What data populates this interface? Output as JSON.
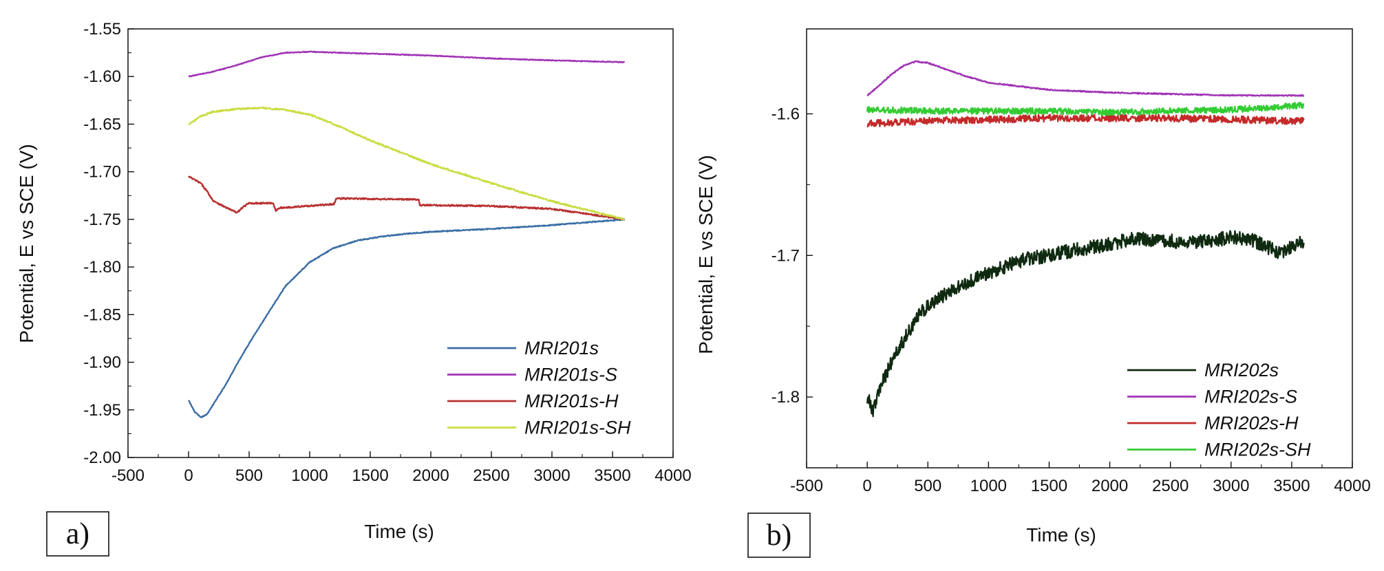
{
  "chart_data": [
    {
      "type": "line",
      "panel_label": "a)",
      "xlabel": "Time (s)",
      "ylabel": "Potential, E vs SCE (V)",
      "xlim": [
        -500,
        4000
      ],
      "ylim": [
        -2.0,
        -1.55
      ],
      "xticks": [
        -500,
        0,
        500,
        1000,
        1500,
        2000,
        2500,
        3000,
        3500,
        4000
      ],
      "xtick_labels": [
        "-500",
        "0",
        "500",
        "1000",
        "1500",
        "2000",
        "2500",
        "3000",
        "3500",
        "4000"
      ],
      "yticks": [
        -2.0,
        -1.95,
        -1.9,
        -1.85,
        -1.8,
        -1.75,
        -1.7,
        -1.65,
        -1.6,
        -1.55
      ],
      "ytick_labels": [
        "-2.00",
        "-1.95",
        "-1.90",
        "-1.85",
        "-1.80",
        "-1.75",
        "-1.70",
        "-1.65",
        "-1.60",
        "-1.55"
      ],
      "legend_position": "bottom-right",
      "series": [
        {
          "name": "MRI201s",
          "color": "#3b6ea5",
          "noise": 0.0005,
          "points": [
            [
              0,
              -1.94
            ],
            [
              50,
              -1.952
            ],
            [
              100,
              -1.958
            ],
            [
              150,
              -1.955
            ],
            [
              200,
              -1.945
            ],
            [
              300,
              -1.925
            ],
            [
              400,
              -1.902
            ],
            [
              500,
              -1.88
            ],
            [
              600,
              -1.86
            ],
            [
              700,
              -1.84
            ],
            [
              800,
              -1.82
            ],
            [
              1000,
              -1.795
            ],
            [
              1200,
              -1.78
            ],
            [
              1400,
              -1.772
            ],
            [
              1600,
              -1.768
            ],
            [
              1800,
              -1.765
            ],
            [
              2000,
              -1.763
            ],
            [
              2500,
              -1.76
            ],
            [
              3000,
              -1.756
            ],
            [
              3600,
              -1.75
            ]
          ]
        },
        {
          "name": "MRI201s-S",
          "color": "#a033b5",
          "noise": 0.0004,
          "points": [
            [
              0,
              -1.6
            ],
            [
              200,
              -1.595
            ],
            [
              400,
              -1.588
            ],
            [
              600,
              -1.58
            ],
            [
              800,
              -1.575
            ],
            [
              1000,
              -1.574
            ],
            [
              1500,
              -1.576
            ],
            [
              2000,
              -1.578
            ],
            [
              2500,
              -1.581
            ],
            [
              3000,
              -1.583
            ],
            [
              3600,
              -1.585
            ]
          ]
        },
        {
          "name": "MRI201s-H",
          "color": "#b83030",
          "noise": 0.0008,
          "points": [
            [
              0,
              -1.705
            ],
            [
              100,
              -1.712
            ],
            [
              150,
              -1.72
            ],
            [
              200,
              -1.73
            ],
            [
              300,
              -1.737
            ],
            [
              400,
              -1.743
            ],
            [
              450,
              -1.737
            ],
            [
              500,
              -1.733
            ],
            [
              700,
              -1.733
            ],
            [
              720,
              -1.741
            ],
            [
              750,
              -1.738
            ],
            [
              1200,
              -1.734
            ],
            [
              1220,
              -1.728
            ],
            [
              1800,
              -1.729
            ],
            [
              1900,
              -1.729
            ],
            [
              1910,
              -1.735
            ],
            [
              2500,
              -1.736
            ],
            [
              3000,
              -1.739
            ],
            [
              3600,
              -1.75
            ]
          ]
        },
        {
          "name": "MRI201s-SH",
          "color": "#c9dd42",
          "noise": 0.0008,
          "points": [
            [
              0,
              -1.65
            ],
            [
              100,
              -1.642
            ],
            [
              200,
              -1.637
            ],
            [
              400,
              -1.634
            ],
            [
              600,
              -1.633
            ],
            [
              800,
              -1.635
            ],
            [
              1000,
              -1.64
            ],
            [
              1200,
              -1.65
            ],
            [
              1500,
              -1.667
            ],
            [
              2000,
              -1.692
            ],
            [
              2500,
              -1.712
            ],
            [
              3000,
              -1.731
            ],
            [
              3600,
              -1.75
            ]
          ]
        }
      ]
    },
    {
      "type": "line",
      "panel_label": "b)",
      "xlabel": "Time (s)",
      "ylabel": "Potential, E vs SCE (V)",
      "xlim": [
        -500,
        4000
      ],
      "ylim": [
        -1.85,
        -1.54
      ],
      "xticks": [
        -500,
        0,
        500,
        1000,
        1500,
        2000,
        2500,
        3000,
        3500,
        4000
      ],
      "xtick_labels": [
        "-500",
        "0",
        "500",
        "1000",
        "1500",
        "2000",
        "2500",
        "3000",
        "3500",
        "4000"
      ],
      "yticks": [
        -1.8,
        -1.7,
        -1.6
      ],
      "ytick_labels": [
        "-1.8",
        "-1.7",
        "-1.6"
      ],
      "legend_position": "bottom-right",
      "series": [
        {
          "name": "MRI202s",
          "color": "#0f2a10",
          "noise": 0.005,
          "points": [
            [
              0,
              -1.8
            ],
            [
              50,
              -1.81
            ],
            [
              100,
              -1.795
            ],
            [
              200,
              -1.775
            ],
            [
              300,
              -1.76
            ],
            [
              400,
              -1.745
            ],
            [
              500,
              -1.735
            ],
            [
              700,
              -1.725
            ],
            [
              1000,
              -1.712
            ],
            [
              1300,
              -1.703
            ],
            [
              1600,
              -1.698
            ],
            [
              2000,
              -1.692
            ],
            [
              2200,
              -1.688
            ],
            [
              2500,
              -1.69
            ],
            [
              2800,
              -1.69
            ],
            [
              3000,
              -1.687
            ],
            [
              3200,
              -1.69
            ],
            [
              3400,
              -1.698
            ],
            [
              3600,
              -1.69
            ]
          ]
        },
        {
          "name": "MRI202s-S",
          "color": "#a033b5",
          "noise": 0.0004,
          "points": [
            [
              0,
              -1.587
            ],
            [
              100,
              -1.58
            ],
            [
              200,
              -1.572
            ],
            [
              300,
              -1.566
            ],
            [
              400,
              -1.563
            ],
            [
              500,
              -1.564
            ],
            [
              600,
              -1.567
            ],
            [
              800,
              -1.573
            ],
            [
              1000,
              -1.578
            ],
            [
              1500,
              -1.583
            ],
            [
              2000,
              -1.585
            ],
            [
              3000,
              -1.587
            ],
            [
              3600,
              -1.587
            ]
          ]
        },
        {
          "name": "MRI202s-H",
          "color": "#c42a2a",
          "noise": 0.0025,
          "points": [
            [
              0,
              -1.607
            ],
            [
              500,
              -1.605
            ],
            [
              1000,
              -1.604
            ],
            [
              1500,
              -1.603
            ],
            [
              2000,
              -1.603
            ],
            [
              2500,
              -1.603
            ],
            [
              3000,
              -1.604
            ],
            [
              3600,
              -1.605
            ]
          ]
        },
        {
          "name": "MRI202s-SH",
          "color": "#33cc33",
          "noise": 0.0022,
          "points": [
            [
              0,
              -1.597
            ],
            [
              500,
              -1.598
            ],
            [
              1000,
              -1.598
            ],
            [
              1500,
              -1.598
            ],
            [
              2000,
              -1.599
            ],
            [
              2500,
              -1.598
            ],
            [
              3000,
              -1.597
            ],
            [
              3600,
              -1.594
            ]
          ]
        }
      ]
    }
  ]
}
